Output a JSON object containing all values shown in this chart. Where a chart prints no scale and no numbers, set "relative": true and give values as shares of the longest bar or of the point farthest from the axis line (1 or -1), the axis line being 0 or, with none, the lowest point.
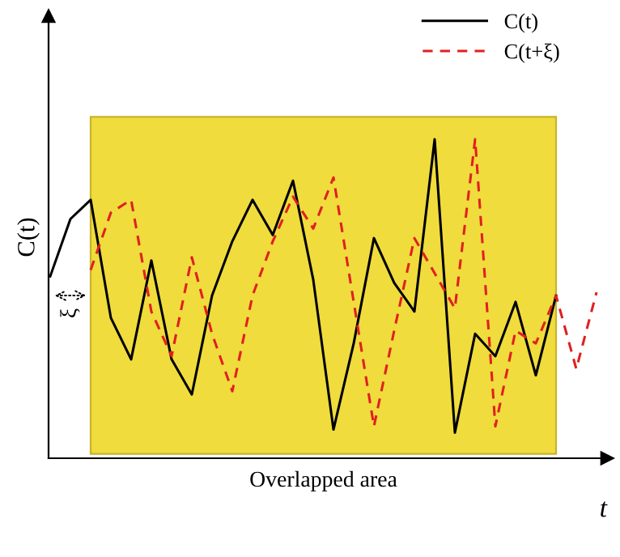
{
  "chart_data": {
    "type": "line",
    "relative": true,
    "ylabel": "C(t)",
    "xlabel": "t",
    "categories": [
      null,
      null,
      null,
      null,
      null,
      null,
      null,
      null,
      null,
      null,
      null,
      null,
      null,
      null,
      null,
      null,
      null,
      null,
      null,
      null,
      null,
      null,
      null,
      null,
      null,
      null,
      null,
      null
    ],
    "series": [
      {
        "name": "C(t)",
        "color": "#000000",
        "line_style": "solid",
        "values": [
          0.57,
          0.75,
          0.81,
          0.44,
          0.31,
          0.62,
          0.31,
          0.2,
          0.51,
          0.68,
          0.81,
          0.7,
          0.87,
          0.56,
          0.09,
          0.36,
          0.69,
          0.55,
          0.46,
          1.0,
          0.08,
          0.39,
          0.32,
          0.49,
          0.26,
          0.51,
          null,
          null
        ]
      },
      {
        "name": "C(t+ξ)",
        "color": "#e02020",
        "line_style": "dashed",
        "values": [
          null,
          null,
          0.59,
          0.77,
          0.81,
          0.46,
          0.32,
          0.63,
          0.39,
          0.21,
          0.51,
          0.68,
          0.82,
          0.72,
          0.88,
          0.49,
          0.1,
          0.4,
          0.69,
          0.58,
          0.47,
          1.0,
          0.1,
          0.4,
          0.36,
          0.51,
          0.28,
          0.52
        ]
      }
    ],
    "annotations": [
      "ξ",
      "Overlapped area"
    ],
    "legend": "top right",
    "marker": "none"
  }
}
